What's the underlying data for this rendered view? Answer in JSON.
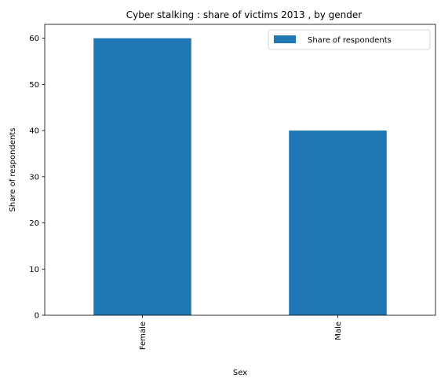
{
  "chart_data": {
    "type": "bar",
    "title": "Cyber stalking : share of victims 2013 , by gender",
    "xlabel": "Sex",
    "ylabel": "Share of respondents",
    "categories": [
      "Female",
      "Male"
    ],
    "series": [
      {
        "name": "Share of respondents",
        "values": [
          60,
          40
        ],
        "color": "#1f77b4"
      }
    ],
    "ylim": [
      0,
      63
    ],
    "yticks": [
      0,
      10,
      20,
      30,
      40,
      50,
      60
    ],
    "grid": false,
    "legend_position": "top-right"
  }
}
